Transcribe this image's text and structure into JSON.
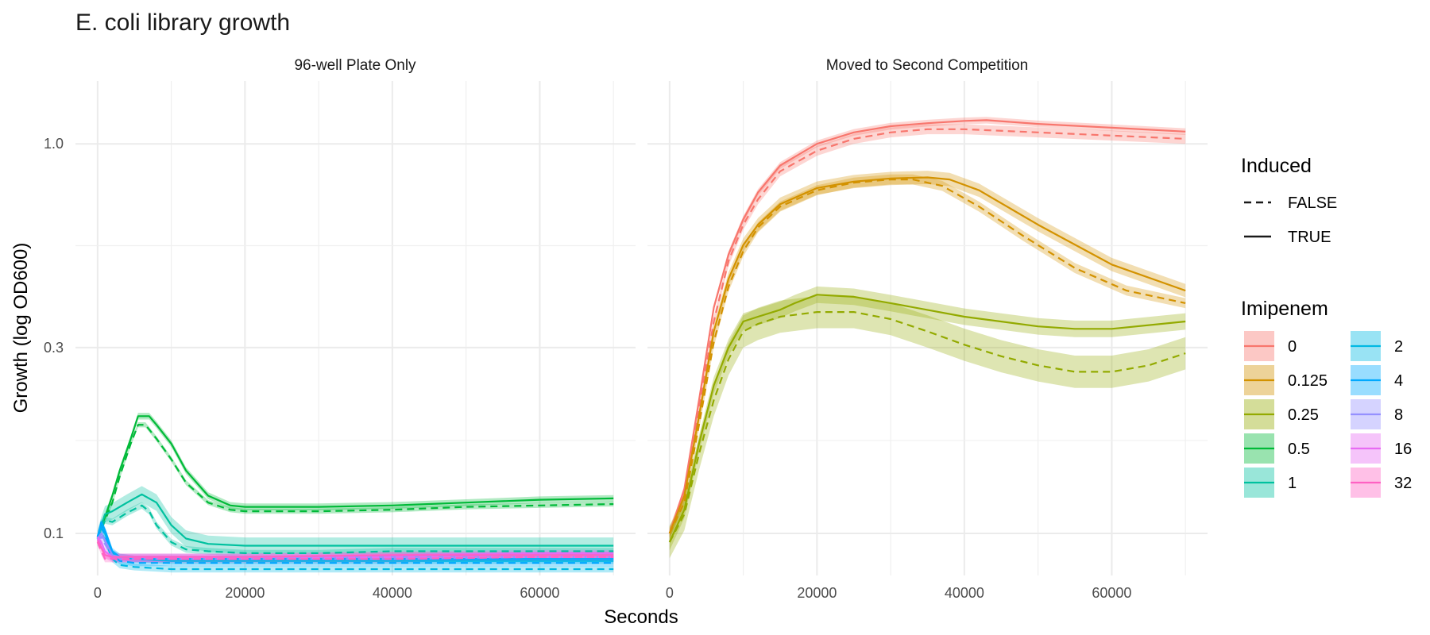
{
  "chart_data": {
    "type": "line",
    "title": "E. coli library growth",
    "xlabel": "Seconds",
    "ylabel": "Growth (log OD600)",
    "y_scale": "log",
    "ylim": [
      0.078,
      1.45
    ],
    "xlim": [
      -3000,
      73000
    ],
    "x_ticks": [
      0,
      20000,
      40000,
      60000
    ],
    "x_tick_labels": [
      "0",
      "20000",
      "40000",
      "60000"
    ],
    "y_ticks": [
      0.1,
      0.3,
      1.0
    ],
    "y_tick_labels": [
      "0.1",
      "0.3",
      "1.0"
    ],
    "grid": true,
    "legend_position": "right",
    "linetype_legend": {
      "title": "Induced",
      "entries": [
        {
          "label": "FALSE",
          "dash": true
        },
        {
          "label": "TRUE",
          "dash": false
        }
      ]
    },
    "color_legend": {
      "title": "Imipenem",
      "entries": [
        {
          "label": "0",
          "color": "#F8766D"
        },
        {
          "label": "0.125",
          "color": "#D39200"
        },
        {
          "label": "0.25",
          "color": "#93AA00"
        },
        {
          "label": "0.5",
          "color": "#00BA38"
        },
        {
          "label": "1",
          "color": "#00C19F"
        },
        {
          "label": "2",
          "color": "#00B9E3"
        },
        {
          "label": "4",
          "color": "#00A9FF"
        },
        {
          "label": "8",
          "color": "#9590FF"
        },
        {
          "label": "16",
          "color": "#E76BF3"
        },
        {
          "label": "32",
          "color": "#FF61C3"
        }
      ]
    },
    "panels": [
      {
        "label": "96-well Plate Only",
        "series": [
          {
            "imipenem": "0.5",
            "induced": "TRUE",
            "color": "#00BA38",
            "band": 0.02,
            "x": [
              0,
              1000,
              2000,
              3000,
              4500,
              5500,
              7000,
              8000,
              10000,
              12000,
              15000,
              18000,
              20000,
              30000,
              40000,
              50000,
              60000,
              70000
            ],
            "y": [
              0.098,
              0.11,
              0.125,
              0.145,
              0.175,
              0.2,
              0.2,
              0.19,
              0.17,
              0.145,
              0.125,
              0.118,
              0.117,
              0.117,
              0.118,
              0.12,
              0.122,
              0.123
            ]
          },
          {
            "imipenem": "0.5",
            "induced": "FALSE",
            "color": "#00BA38",
            "band": 0.015,
            "x": [
              0,
              1000,
              2000,
              3000,
              4500,
              5500,
              6500,
              8000,
              10000,
              12000,
              15000,
              18000,
              20000,
              30000,
              40000,
              50000,
              60000,
              70000
            ],
            "y": [
              0.097,
              0.108,
              0.12,
              0.14,
              0.17,
              0.19,
              0.19,
              0.175,
              0.155,
              0.135,
              0.12,
              0.115,
              0.114,
              0.114,
              0.115,
              0.117,
              0.118,
              0.119
            ]
          },
          {
            "imipenem": "1",
            "induced": "TRUE",
            "color": "#00C19F",
            "band": 0.05,
            "x": [
              0,
              500,
              1000,
              2000,
              4000,
              6000,
              8000,
              10000,
              12000,
              15000,
              20000,
              30000,
              40000,
              50000,
              60000,
              70000
            ],
            "y": [
              0.097,
              0.105,
              0.112,
              0.114,
              0.12,
              0.126,
              0.12,
              0.105,
              0.097,
              0.094,
              0.093,
              0.093,
              0.093,
              0.093,
              0.093,
              0.093
            ]
          },
          {
            "imipenem": "1",
            "induced": "FALSE",
            "color": "#00C19F",
            "band": 0.02,
            "x": [
              0,
              500,
              1000,
              2000,
              4000,
              6000,
              7000,
              8000,
              10000,
              12000,
              15000,
              20000,
              30000,
              40000,
              50000,
              60000,
              70000
            ],
            "y": [
              0.097,
              0.103,
              0.108,
              0.107,
              0.113,
              0.118,
              0.114,
              0.105,
              0.095,
              0.091,
              0.09,
              0.089,
              0.089,
              0.09,
              0.09,
              0.09,
              0.09
            ]
          },
          {
            "imipenem": "2",
            "induced": "TRUE",
            "color": "#00B9E3",
            "band": 0.02,
            "x": [
              0,
              500,
              1000,
              2000,
              3000,
              5000,
              10000,
              20000,
              40000,
              60000,
              70000
            ],
            "y": [
              0.098,
              0.104,
              0.1,
              0.089,
              0.087,
              0.086,
              0.085,
              0.085,
              0.085,
              0.085,
              0.085
            ]
          },
          {
            "imipenem": "2",
            "induced": "FALSE",
            "color": "#00B9E3",
            "band": 0.02,
            "x": [
              0,
              500,
              1000,
              2000,
              3000,
              5000,
              10000,
              20000,
              40000,
              60000,
              70000
            ],
            "y": [
              0.097,
              0.101,
              0.096,
              0.086,
              0.083,
              0.082,
              0.081,
              0.081,
              0.081,
              0.081,
              0.081
            ]
          },
          {
            "imipenem": "4",
            "induced": "TRUE",
            "color": "#00A9FF",
            "band": 0.02,
            "x": [
              0,
              500,
              1000,
              2000,
              3000,
              5000,
              10000,
              20000,
              40000,
              60000,
              70000
            ],
            "y": [
              0.098,
              0.107,
              0.102,
              0.09,
              0.087,
              0.086,
              0.086,
              0.086,
              0.086,
              0.086,
              0.086
            ]
          },
          {
            "imipenem": "4",
            "induced": "FALSE",
            "color": "#00A9FF",
            "band": 0.02,
            "x": [
              0,
              500,
              1000,
              2000,
              3000,
              5000,
              10000,
              20000,
              40000,
              60000,
              70000
            ],
            "y": [
              0.097,
              0.104,
              0.099,
              0.088,
              0.085,
              0.084,
              0.084,
              0.084,
              0.084,
              0.084,
              0.084
            ]
          },
          {
            "imipenem": "8",
            "induced": "TRUE",
            "color": "#9590FF",
            "band": 0.02,
            "x": [
              0,
              500,
              1000,
              2000,
              3000,
              5000,
              10000,
              20000,
              40000,
              60000,
              70000
            ],
            "y": [
              0.097,
              0.1,
              0.096,
              0.088,
              0.087,
              0.087,
              0.087,
              0.087,
              0.087,
              0.088,
              0.088
            ]
          },
          {
            "imipenem": "8",
            "induced": "FALSE",
            "color": "#9590FF",
            "band": 0.02,
            "x": [
              0,
              500,
              1000,
              2000,
              3000,
              5000,
              10000,
              20000,
              40000,
              60000,
              70000
            ],
            "y": [
              0.096,
              0.098,
              0.094,
              0.087,
              0.086,
              0.086,
              0.086,
              0.086,
              0.086,
              0.087,
              0.087
            ]
          },
          {
            "imipenem": "16",
            "induced": "TRUE",
            "color": "#E76BF3",
            "band": 0.02,
            "x": [
              0,
              500,
              1000,
              2000,
              3000,
              5000,
              10000,
              20000,
              40000,
              60000,
              70000
            ],
            "y": [
              0.098,
              0.095,
              0.09,
              0.087,
              0.087,
              0.087,
              0.087,
              0.087,
              0.088,
              0.089,
              0.089
            ]
          },
          {
            "imipenem": "16",
            "induced": "FALSE",
            "color": "#E76BF3",
            "band": 0.02,
            "x": [
              0,
              500,
              1000,
              2000,
              3000,
              5000,
              10000,
              20000,
              40000,
              60000,
              70000
            ],
            "y": [
              0.097,
              0.093,
              0.088,
              0.086,
              0.086,
              0.086,
              0.086,
              0.086,
              0.087,
              0.087,
              0.087
            ]
          },
          {
            "imipenem": "32",
            "induced": "TRUE",
            "color": "#FF61C3",
            "band": 0.02,
            "x": [
              0,
              500,
              1000,
              2000,
              3000,
              5000,
              10000,
              20000,
              40000,
              60000,
              70000
            ],
            "y": [
              0.096,
              0.092,
              0.088,
              0.087,
              0.087,
              0.087,
              0.087,
              0.087,
              0.088,
              0.088,
              0.088
            ]
          },
          {
            "imipenem": "32",
            "induced": "FALSE",
            "color": "#FF61C3",
            "band": 0.02,
            "x": [
              0,
              500,
              1000,
              2000,
              3000,
              5000,
              10000,
              20000,
              40000,
              60000,
              70000
            ],
            "y": [
              0.095,
              0.09,
              0.086,
              0.086,
              0.086,
              0.086,
              0.086,
              0.086,
              0.086,
              0.087,
              0.087
            ]
          }
        ]
      },
      {
        "label": "Moved to Second Competition",
        "series": [
          {
            "imipenem": "0",
            "induced": "TRUE",
            "color": "#F8766D",
            "band": 0.02,
            "x": [
              0,
              2000,
              4000,
              6000,
              8000,
              10000,
              12000,
              15000,
              20000,
              25000,
              30000,
              35000,
              40000,
              43000,
              50000,
              60000,
              70000
            ],
            "y": [
              0.1,
              0.13,
              0.22,
              0.38,
              0.52,
              0.64,
              0.75,
              0.88,
              1.0,
              1.07,
              1.11,
              1.13,
              1.145,
              1.15,
              1.125,
              1.1,
              1.075
            ]
          },
          {
            "imipenem": "0",
            "induced": "FALSE",
            "color": "#F8766D",
            "band": 0.03,
            "x": [
              0,
              2000,
              4000,
              6000,
              8000,
              10000,
              12000,
              15000,
              20000,
              25000,
              30000,
              35000,
              40000,
              50000,
              60000,
              70000
            ],
            "y": [
              0.1,
              0.125,
              0.21,
              0.35,
              0.5,
              0.62,
              0.72,
              0.85,
              0.96,
              1.03,
              1.07,
              1.09,
              1.09,
              1.07,
              1.05,
              1.03
            ]
          },
          {
            "imipenem": "0.125",
            "induced": "TRUE",
            "color": "#D39200",
            "band": 0.04,
            "x": [
              0,
              2000,
              4000,
              6000,
              8000,
              10000,
              12000,
              15000,
              20000,
              25000,
              30000,
              35000,
              38000,
              42000,
              50000,
              60000,
              70000
            ],
            "y": [
              0.1,
              0.125,
              0.2,
              0.33,
              0.45,
              0.55,
              0.62,
              0.7,
              0.77,
              0.8,
              0.815,
              0.82,
              0.81,
              0.76,
              0.62,
              0.49,
              0.42
            ]
          },
          {
            "imipenem": "0.125",
            "induced": "FALSE",
            "color": "#D39200",
            "band": 0.03,
            "x": [
              0,
              2000,
              4000,
              6000,
              8000,
              10000,
              12000,
              15000,
              20000,
              25000,
              30000,
              33000,
              37000,
              42000,
              48000,
              55000,
              62000,
              70000
            ],
            "y": [
              0.1,
              0.12,
              0.19,
              0.31,
              0.43,
              0.53,
              0.61,
              0.69,
              0.76,
              0.795,
              0.81,
              0.81,
              0.78,
              0.69,
              0.58,
              0.48,
              0.42,
              0.39
            ]
          },
          {
            "imipenem": "0.25",
            "induced": "TRUE",
            "color": "#93AA00",
            "band": 0.05,
            "x": [
              0,
              2000,
              4000,
              6000,
              8000,
              10000,
              12000,
              15000,
              17000,
              20000,
              25000,
              30000,
              40000,
              50000,
              55000,
              60000,
              70000
            ],
            "y": [
              0.095,
              0.115,
              0.17,
              0.24,
              0.3,
              0.35,
              0.36,
              0.375,
              0.39,
              0.41,
              0.405,
              0.39,
              0.36,
              0.34,
              0.335,
              0.335,
              0.35
            ]
          },
          {
            "imipenem": "0.25",
            "induced": "FALSE",
            "color": "#93AA00",
            "band": 0.1,
            "x": [
              0,
              2000,
              4000,
              6000,
              8000,
              10000,
              12000,
              15000,
              20000,
              25000,
              30000,
              35000,
              40000,
              45000,
              50000,
              55000,
              60000,
              65000,
              70000
            ],
            "y": [
              0.095,
              0.112,
              0.16,
              0.22,
              0.28,
              0.33,
              0.345,
              0.36,
              0.37,
              0.37,
              0.355,
              0.33,
              0.305,
              0.285,
              0.27,
              0.26,
              0.26,
              0.27,
              0.29
            ]
          }
        ]
      }
    ]
  }
}
